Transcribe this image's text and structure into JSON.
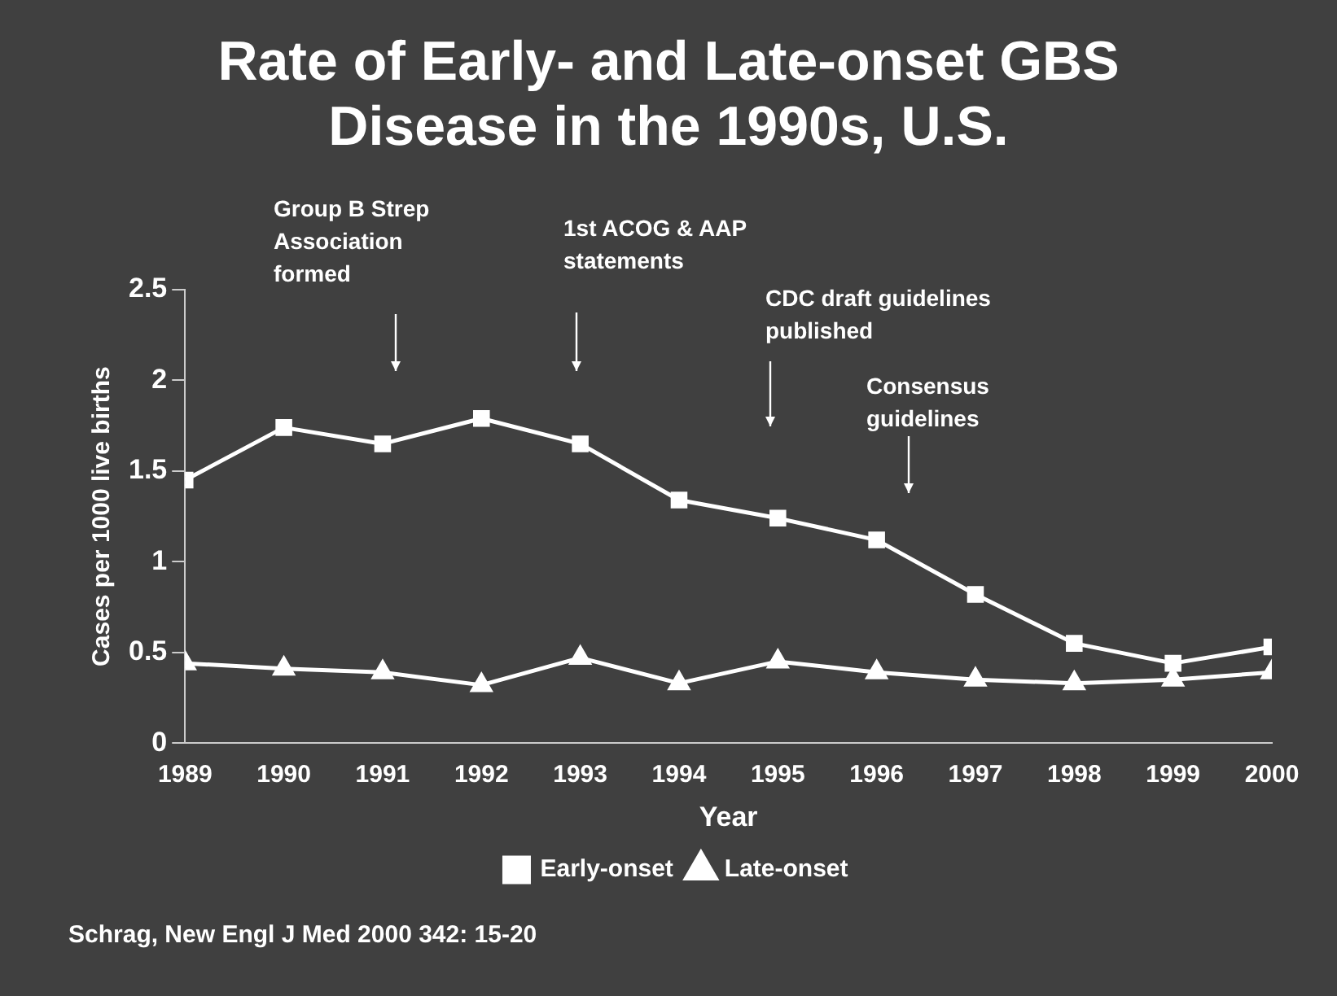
{
  "chart_data": {
    "type": "line",
    "title": "Rate of Early- and Late-onset GBS Disease in the 1990s, U.S.",
    "xlabel": "Year",
    "ylabel": "Cases per 1000 live births",
    "x": [
      1989,
      1990,
      1991,
      1992,
      1993,
      1994,
      1995,
      1996,
      1997,
      1998,
      1999,
      2000
    ],
    "xlim": [
      1989,
      2000
    ],
    "xticks": [
      1989,
      1990,
      1991,
      1992,
      1993,
      1994,
      1995,
      1996,
      1997,
      1998,
      1999,
      2000
    ],
    "ylim": [
      0,
      2.5
    ],
    "yticks": [
      0,
      0.5,
      1,
      1.5,
      2,
      2.5
    ],
    "series": [
      {
        "name": "Early-onset",
        "color": "#ffffff",
        "marker": "square",
        "values": [
          1.45,
          1.74,
          1.65,
          1.79,
          1.65,
          1.34,
          1.24,
          1.12,
          0.82,
          0.55,
          0.44,
          0.53
        ]
      },
      {
        "name": "Late-onset",
        "color": "#ffffff",
        "marker": "triangle",
        "values": [
          0.44,
          0.41,
          0.39,
          0.32,
          0.47,
          0.33,
          0.45,
          0.39,
          0.35,
          0.33,
          0.35,
          0.39
        ]
      }
    ],
    "annotations": [
      "Group B Strep Association formed",
      "1st ACOG & AAP statements",
      "CDC draft guidelines published",
      "Consensus guidelines",
      "Schrag, New Engl J Med 2000 342: 15-20"
    ],
    "grid": false,
    "legend": "bottom",
    "line_style": "solid"
  }
}
